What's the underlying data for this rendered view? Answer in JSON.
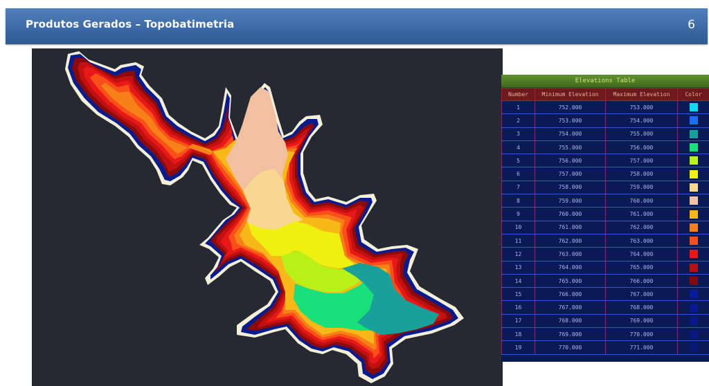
{
  "slide": {
    "title": "Produtos Gerados – Topobatimetria",
    "page_number": "6"
  },
  "elevation_table": {
    "title": "Elevations Table",
    "headers": [
      "Number",
      "Minimum Elevation",
      "Maximum Elevation",
      "Color"
    ],
    "rows": [
      {
        "number": "1",
        "min": "752.000",
        "max": "753.000",
        "color": "#10d8f0"
      },
      {
        "number": "2",
        "min": "753.000",
        "max": "754.000",
        "color": "#1a6ef0"
      },
      {
        "number": "3",
        "min": "754.000",
        "max": "755.000",
        "color": "#1aa09a"
      },
      {
        "number": "4",
        "min": "755.000",
        "max": "756.000",
        "color": "#18e07a"
      },
      {
        "number": "5",
        "min": "756.000",
        "max": "757.000",
        "color": "#b8f018"
      },
      {
        "number": "6",
        "min": "757.000",
        "max": "758.000",
        "color": "#f0f010"
      },
      {
        "number": "7",
        "min": "758.000",
        "max": "759.000",
        "color": "#f8d890"
      },
      {
        "number": "8",
        "min": "759.000",
        "max": "760.000",
        "color": "#f0c0a0"
      },
      {
        "number": "9",
        "min": "760.000",
        "max": "761.000",
        "color": "#f8b818"
      },
      {
        "number": "10",
        "min": "761.000",
        "max": "762.000",
        "color": "#f88018"
      },
      {
        "number": "11",
        "min": "762.000",
        "max": "763.000",
        "color": "#f85018"
      },
      {
        "number": "12",
        "min": "763.000",
        "max": "764.000",
        "color": "#e81818"
      },
      {
        "number": "13",
        "min": "764.000",
        "max": "765.000",
        "color": "#b81010"
      },
      {
        "number": "14",
        "min": "765.000",
        "max": "766.000",
        "color": "#800a0a"
      },
      {
        "number": "15",
        "min": "766.000",
        "max": "767.000",
        "color": "#081aa0"
      },
      {
        "number": "16",
        "min": "767.000",
        "max": "768.000",
        "color": "#081890"
      },
      {
        "number": "17",
        "min": "768.000",
        "max": "769.000",
        "color": "#081888"
      },
      {
        "number": "18",
        "min": "769.000",
        "max": "770.000",
        "color": "#081880"
      },
      {
        "number": "19",
        "min": "770.000",
        "max": "771.000",
        "color": "#081878"
      }
    ]
  },
  "map": {
    "background_color": "#252a32",
    "layers": [
      {
        "name": "shoreline",
        "color": "#f4f0d8"
      },
      {
        "name": "elev-766-771",
        "color": "#0a1c8c"
      },
      {
        "name": "elev-765-766",
        "color": "#8a0a0a"
      },
      {
        "name": "elev-764-765",
        "color": "#c01010"
      },
      {
        "name": "elev-763-764",
        "color": "#e81818"
      },
      {
        "name": "elev-762-763",
        "color": "#f85018"
      },
      {
        "name": "elev-761-762",
        "color": "#f88018"
      },
      {
        "name": "elev-760-761",
        "color": "#f8b818"
      },
      {
        "name": "elev-759-760",
        "color": "#f0c0a0"
      },
      {
        "name": "elev-758-759",
        "color": "#f8d890"
      },
      {
        "name": "elev-757-758",
        "color": "#f0f010"
      },
      {
        "name": "elev-756-757",
        "color": "#b8f018"
      },
      {
        "name": "elev-755-756",
        "color": "#18e07a"
      },
      {
        "name": "elev-754-755",
        "color": "#1aa09a"
      }
    ]
  }
}
